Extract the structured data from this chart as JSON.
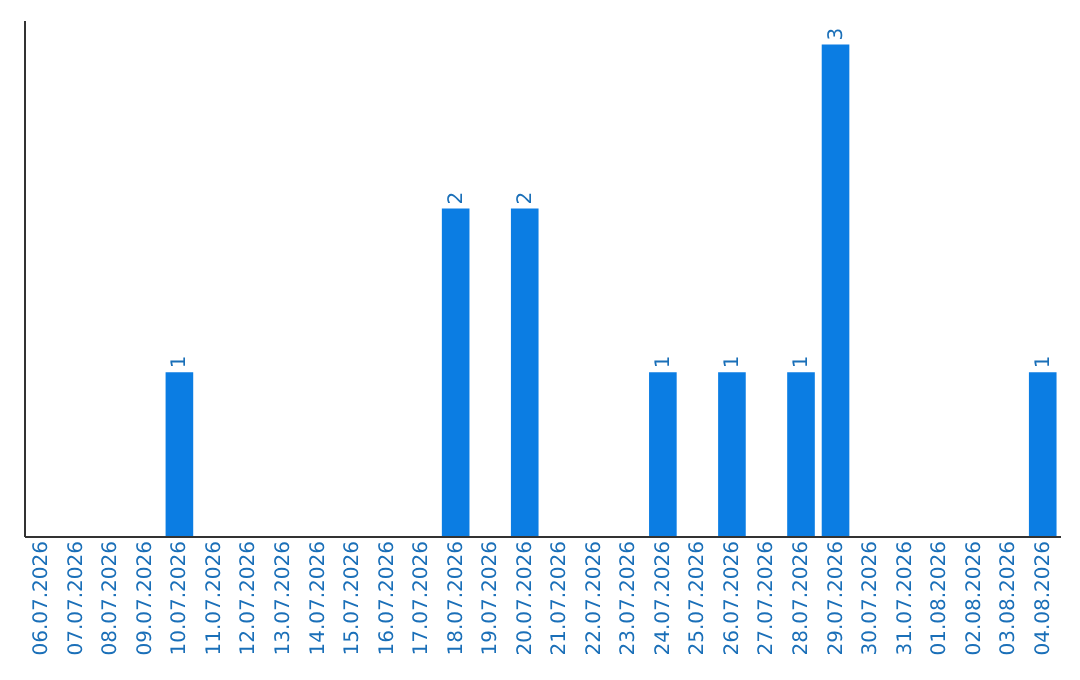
{
  "chart_data": {
    "type": "bar",
    "categories": [
      "06.07.2026",
      "07.07.2026",
      "08.07.2026",
      "09.07.2026",
      "10.07.2026",
      "11.07.2026",
      "12.07.2026",
      "13.07.2026",
      "14.07.2026",
      "15.07.2026",
      "16.07.2026",
      "17.07.2026",
      "18.07.2026",
      "19.07.2026",
      "20.07.2026",
      "21.07.2026",
      "22.07.2026",
      "23.07.2026",
      "24.07.2026",
      "25.07.2026",
      "26.07.2026",
      "27.07.2026",
      "28.07.2026",
      "29.07.2026",
      "30.07.2026",
      "31.07.2026",
      "01.08.2026",
      "02.08.2026",
      "03.08.2026",
      "04.08.2026"
    ],
    "values": [
      0,
      0,
      0,
      0,
      1,
      0,
      0,
      0,
      0,
      0,
      0,
      0,
      2,
      0,
      2,
      0,
      0,
      0,
      1,
      0,
      1,
      0,
      1,
      3,
      0,
      0,
      0,
      0,
      0,
      1
    ],
    "value_labels": [
      null,
      null,
      null,
      null,
      "1",
      null,
      null,
      null,
      null,
      null,
      null,
      null,
      "2",
      null,
      "2",
      null,
      null,
      null,
      "1",
      null,
      "1",
      null,
      "1",
      "3",
      null,
      null,
      null,
      null,
      null,
      "1"
    ],
    "color": "#0b7de3",
    "ylim": [
      0,
      3.15
    ],
    "tick_labels": "x",
    "grid": false
  }
}
